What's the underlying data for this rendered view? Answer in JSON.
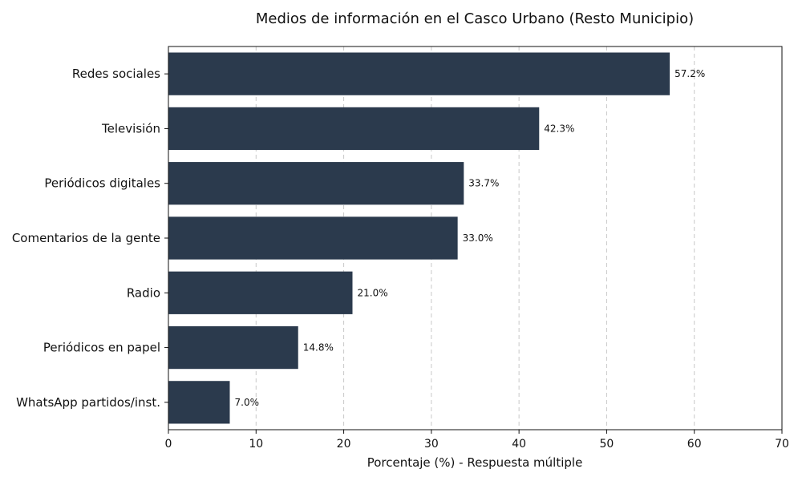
{
  "chart_data": {
    "type": "bar",
    "orientation": "horizontal",
    "title": "Medios de información en el Casco Urbano (Resto Municipio)",
    "xlabel": "Porcentaje (%) - Respuesta múltiple",
    "ylabel": "",
    "categories": [
      "Redes sociales",
      "Televisión",
      "Periódicos digitales",
      "Comentarios de la gente",
      "Radio",
      "Periódicos en papel",
      "WhatsApp partidos/inst."
    ],
    "values": [
      57.2,
      42.3,
      33.7,
      33.0,
      21.0,
      14.8,
      7.0
    ],
    "value_labels": [
      "57.2%",
      "42.3%",
      "33.7%",
      "33.0%",
      "21.0%",
      "14.8%",
      "7.0%"
    ],
    "xlim": [
      0,
      70
    ],
    "xticks": [
      0,
      10,
      20,
      30,
      40,
      50,
      60,
      70
    ],
    "xtick_labels": [
      "0",
      "10",
      "20",
      "30",
      "40",
      "50",
      "60",
      "70"
    ],
    "grid": "x-dashed",
    "legend": "none",
    "bar_color": "#2b3a4d",
    "grid_color": "#c8c8c8"
  }
}
